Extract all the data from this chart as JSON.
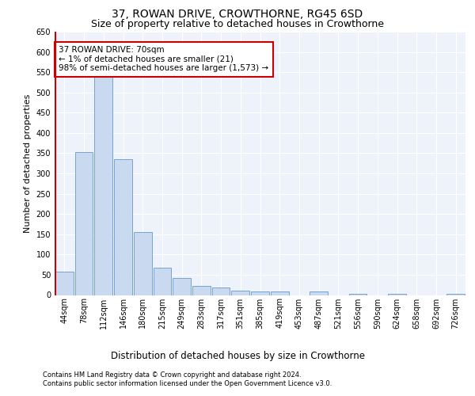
{
  "title1": "37, ROWAN DRIVE, CROWTHORNE, RG45 6SD",
  "title2": "Size of property relative to detached houses in Crowthorne",
  "xlabel": "Distribution of detached houses by size in Crowthorne",
  "ylabel": "Number of detached properties",
  "bar_labels": [
    "44sqm",
    "78sqm",
    "112sqm",
    "146sqm",
    "180sqm",
    "215sqm",
    "249sqm",
    "283sqm",
    "317sqm",
    "351sqm",
    "385sqm",
    "419sqm",
    "453sqm",
    "487sqm",
    "521sqm",
    "556sqm",
    "590sqm",
    "624sqm",
    "658sqm",
    "692sqm",
    "726sqm"
  ],
  "bar_values": [
    57,
    353,
    538,
    336,
    155,
    67,
    42,
    23,
    18,
    10,
    8,
    8,
    0,
    8,
    0,
    3,
    0,
    3,
    0,
    0,
    3
  ],
  "bar_color": "#c9d9f0",
  "bar_edge_color": "#6699cc",
  "marker_color": "#cc0000",
  "annotation_text": "37 ROWAN DRIVE: 70sqm\n← 1% of detached houses are smaller (21)\n98% of semi-detached houses are larger (1,573) →",
  "annotation_box_color": "#ffffff",
  "annotation_box_edge": "#cc0000",
  "ylim": [
    0,
    650
  ],
  "yticks": [
    0,
    50,
    100,
    150,
    200,
    250,
    300,
    350,
    400,
    450,
    500,
    550,
    600,
    650
  ],
  "footer1": "Contains HM Land Registry data © Crown copyright and database right 2024.",
  "footer2": "Contains public sector information licensed under the Open Government Licence v3.0.",
  "bg_color": "#eef2fa",
  "grid_color": "#ffffff",
  "title1_fontsize": 10,
  "title2_fontsize": 9,
  "tick_fontsize": 7,
  "ylabel_fontsize": 8,
  "xlabel_fontsize": 8.5,
  "annotation_fontsize": 7.5,
  "footer_fontsize": 6
}
